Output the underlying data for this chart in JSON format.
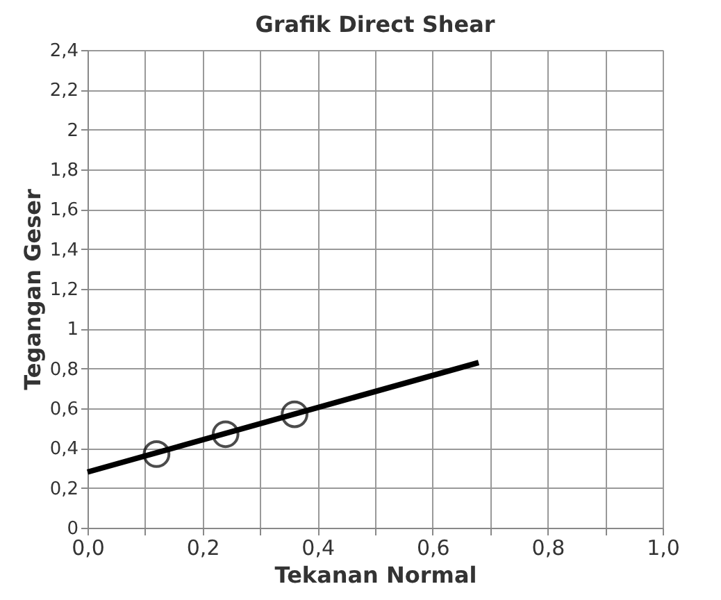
{
  "chart_data": {
    "type": "scatter",
    "title": "Grafik Direct Shear",
    "xlabel": "Tekanan Normal",
    "ylabel": "Tegangan Geser",
    "series": [
      {
        "color": "#000000",
        "marker": "circle",
        "x": [
          0.12,
          0.24,
          0.36
        ],
        "values": [
          0.37,
          0.47,
          0.57
        ]
      },
      {
        "type": "line",
        "color": "#000000",
        "marker": "none",
        "x": [
          0.0,
          0.68
        ],
        "values": [
          0.28,
          0.83
        ]
      }
    ],
    "xlim": [
      0,
      1
    ],
    "ylim": [
      0,
      2.4
    ],
    "xticks": [
      {
        "value": 0,
        "label": "0,0"
      },
      {
        "value": 0.1,
        "label": null
      },
      {
        "value": 0.2,
        "label": "0,2"
      },
      {
        "value": 0.3,
        "label": null
      },
      {
        "value": 0.4,
        "label": "0,4"
      },
      {
        "value": 0.5,
        "label": null
      },
      {
        "value": 0.6,
        "label": "0,6"
      },
      {
        "value": 0.7,
        "label": null
      },
      {
        "value": 0.8,
        "label": "0,8"
      },
      {
        "value": 0.9,
        "label": null
      },
      {
        "value": 1,
        "label": "1,0"
      }
    ],
    "yticks": [
      0,
      {
        "value": 0.2,
        "label": "0,2"
      },
      {
        "value": 0.4,
        "label": "0,4"
      },
      {
        "value": 0.6,
        "label": "0,6"
      },
      {
        "value": 0.8,
        "label": "0,8"
      },
      1,
      {
        "value": 1.2,
        "label": "1,2"
      },
      {
        "value": 1.4,
        "label": "1,4"
      },
      {
        "value": 1.6,
        "label": "1,6"
      },
      {
        "value": 1.8,
        "label": "1,8"
      },
      2,
      {
        "value": 2.2,
        "label": "2,2"
      },
      {
        "value": 2.4,
        "label": "2,4"
      }
    ],
    "grid": true
  }
}
